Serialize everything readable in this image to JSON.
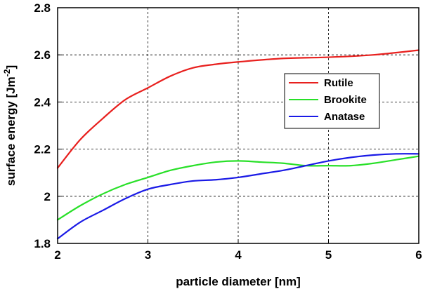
{
  "chart_data": {
    "type": "line",
    "xlabel": "particle diameter [nm]",
    "ylabel_main": "surface energy [Jm",
    "ylabel_sup": "-2",
    "ylabel_close": "]",
    "xlim": [
      2,
      6
    ],
    "ylim": [
      1.8,
      2.8
    ],
    "x_ticks": [
      "2",
      "3",
      "4",
      "5",
      "6"
    ],
    "y_ticks": [
      "1.8",
      "2",
      "2.2",
      "2.4",
      "2.6",
      "2.8"
    ],
    "grid": true,
    "legend_position": "center-right",
    "series": [
      {
        "name": "Rutile",
        "color": "#e8201e",
        "x": [
          2.0,
          2.25,
          2.5,
          2.75,
          3.0,
          3.25,
          3.5,
          3.75,
          4.0,
          4.5,
          5.0,
          5.5,
          6.0
        ],
        "y": [
          2.12,
          2.24,
          2.33,
          2.41,
          2.46,
          2.51,
          2.545,
          2.56,
          2.57,
          2.585,
          2.59,
          2.6,
          2.62
        ]
      },
      {
        "name": "Brookite",
        "color": "#28e028",
        "x": [
          2.0,
          2.25,
          2.5,
          2.75,
          3.0,
          3.25,
          3.5,
          3.75,
          4.0,
          4.25,
          4.5,
          4.75,
          5.0,
          5.25,
          5.5,
          5.75,
          6.0
        ],
        "y": [
          1.9,
          1.96,
          2.01,
          2.05,
          2.08,
          2.11,
          2.13,
          2.145,
          2.15,
          2.145,
          2.14,
          2.13,
          2.13,
          2.13,
          2.14,
          2.155,
          2.17
        ]
      },
      {
        "name": "Anatase",
        "color": "#1a1ae6",
        "x": [
          2.0,
          2.25,
          2.5,
          2.75,
          3.0,
          3.25,
          3.5,
          3.75,
          4.0,
          4.25,
          4.5,
          4.75,
          5.0,
          5.25,
          5.5,
          5.75,
          6.0
        ],
        "y": [
          1.82,
          1.89,
          1.94,
          1.99,
          2.03,
          2.05,
          2.065,
          2.07,
          2.08,
          2.095,
          2.11,
          2.13,
          2.15,
          2.165,
          2.175,
          2.18,
          2.18
        ]
      }
    ]
  }
}
